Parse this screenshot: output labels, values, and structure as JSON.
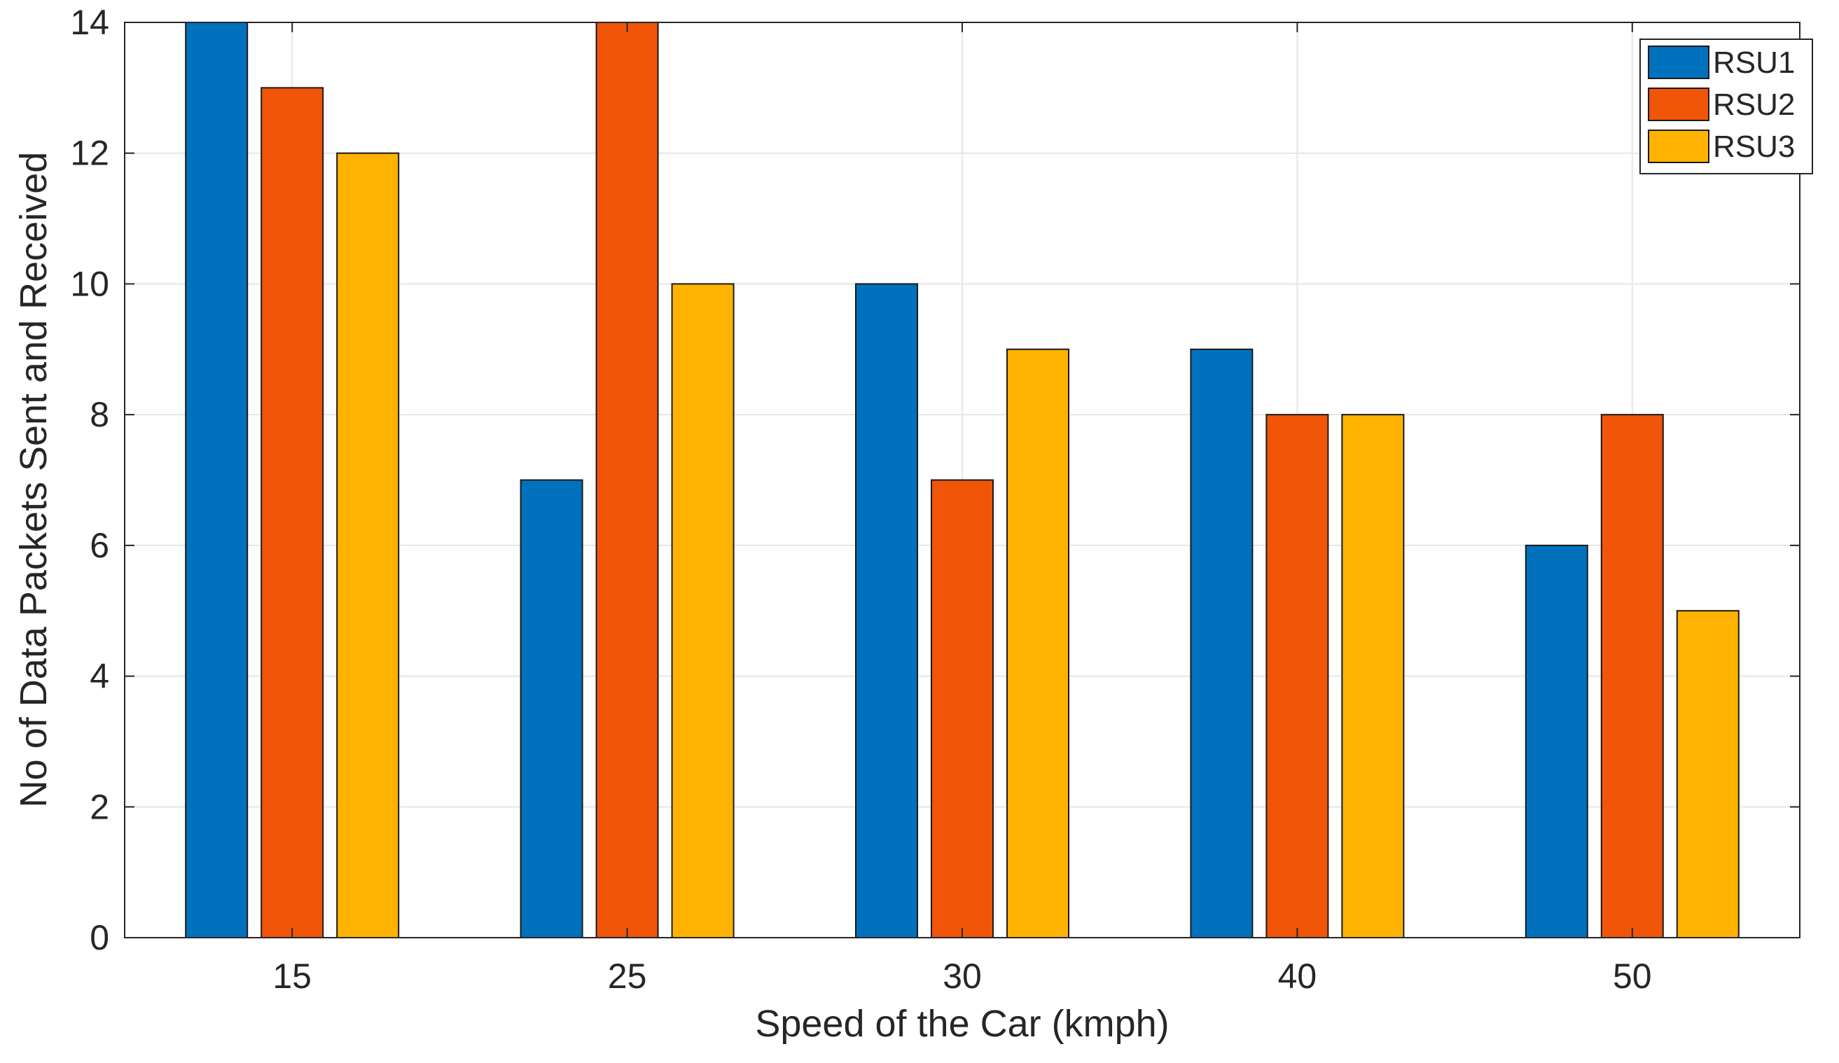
{
  "chart_data": {
    "type": "bar",
    "title": "",
    "xlabel": "Speed of the Car (kmph)",
    "ylabel": "No of Data Packets Sent and Received",
    "categories": [
      "15",
      "25",
      "30",
      "40",
      "50"
    ],
    "series": [
      {
        "name": "RSU1",
        "color": "#0072BD",
        "values": [
          14,
          7,
          10,
          9,
          6
        ]
      },
      {
        "name": "RSU2",
        "color": "#F05508",
        "values": [
          13,
          14,
          7,
          8,
          8
        ]
      },
      {
        "name": "RSU3",
        "color": "#FFB300",
        "values": [
          12,
          10,
          9,
          8,
          5
        ]
      }
    ],
    "ylim": [
      0,
      14
    ],
    "yticks": [
      "0",
      "2",
      "4",
      "6",
      "8",
      "10",
      "12",
      "14"
    ],
    "grid": true,
    "legend_position": "top-right"
  }
}
